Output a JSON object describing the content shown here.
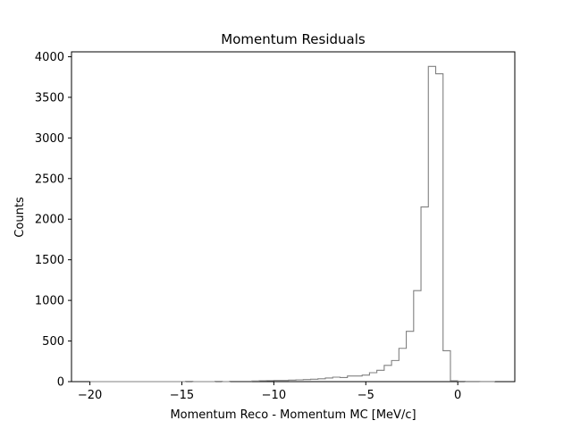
{
  "chart_data": {
    "type": "histogram",
    "title": "Momentum Residuals",
    "xlabel": "Momentum Reco - Momentum MC [MeV/c]",
    "ylabel": "Counts",
    "xlim": [
      -21.0,
      3.1
    ],
    "ylim": [
      0,
      4060
    ],
    "grid": false,
    "legend": "none",
    "line_color": "#808080",
    "x_ticks": [
      -20,
      -15,
      -10,
      -5,
      0
    ],
    "x_tick_labels": [
      "−20",
      "−15",
      "−10",
      "−5",
      "0"
    ],
    "y_ticks": [
      0,
      500,
      1000,
      1500,
      2000,
      2500,
      3000,
      3500,
      4000
    ],
    "y_tick_labels": [
      "0",
      "500",
      "1000",
      "1500",
      "2000",
      "2500",
      "3000",
      "3500",
      "4000"
    ],
    "bin_edges": [
      -20.0,
      -19.6,
      -19.2,
      -18.8,
      -18.4,
      -18.0,
      -17.6,
      -17.2,
      -16.8,
      -16.4,
      -16.0,
      -15.6,
      -15.2,
      -14.8,
      -14.4,
      -14.0,
      -13.6,
      -13.2,
      -12.8,
      -12.4,
      -12.0,
      -11.6,
      -11.2,
      -10.8,
      -10.4,
      -10.0,
      -9.6,
      -9.2,
      -8.8,
      -8.4,
      -8.0,
      -7.6,
      -7.2,
      -6.8,
      -6.4,
      -6.0,
      -5.6,
      -5.2,
      -4.8,
      -4.4,
      -4.0,
      -3.6,
      -3.2,
      -2.8,
      -2.4,
      -2.0,
      -1.6,
      -1.2,
      -0.8,
      -0.4,
      0.0,
      0.4,
      0.8,
      1.2,
      1.6,
      2.0
    ],
    "counts": [
      0,
      0,
      0,
      0,
      0,
      0,
      0,
      0,
      0,
      0,
      0,
      0,
      0,
      3,
      0,
      0,
      0,
      3,
      0,
      5,
      5,
      5,
      8,
      10,
      12,
      15,
      15,
      18,
      22,
      25,
      30,
      35,
      45,
      55,
      50,
      70,
      70,
      80,
      110,
      140,
      200,
      260,
      410,
      620,
      1120,
      2150,
      3880,
      3790,
      380,
      10,
      5,
      2,
      2,
      1,
      1
    ]
  }
}
